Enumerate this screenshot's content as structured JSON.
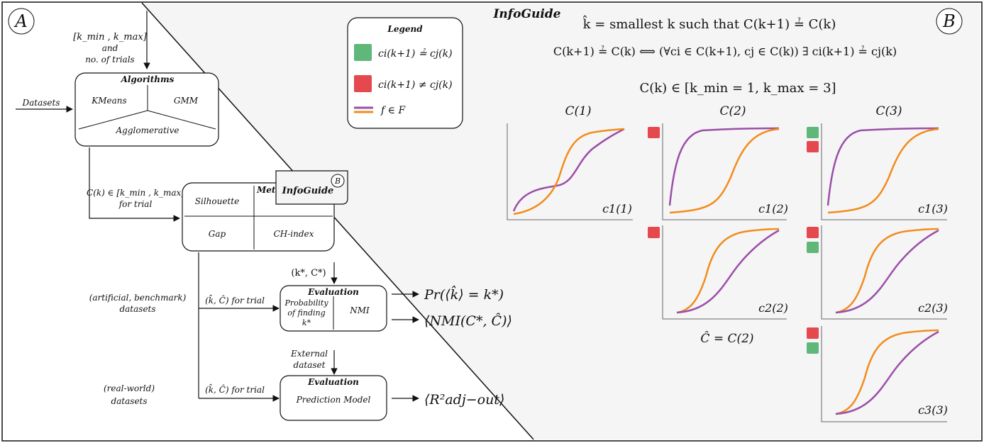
{
  "panel_a": {
    "label": "A",
    "inputs": {
      "k_range": "[k_min , k_max]",
      "and": "and",
      "trials": "no. of trials",
      "datasets": "Datasets"
    },
    "algorithms": {
      "title": "Algorithms",
      "kmeans": "KMeans",
      "gmm": "GMM",
      "agglomerative": "Agglomerative"
    },
    "clusterings_label": "C(k) ∈ [k_min , k_max]",
    "for_trial": "for trial",
    "metrics": {
      "title": "Metrics",
      "silhouette": "Silhouette",
      "gap": "Gap",
      "ch_index": "CH-index",
      "infoguide": "InfoGuide",
      "infoguide_ref": "B"
    },
    "ground_truth": "(k*, C*)",
    "estimate_label": "(k̂, Ĉ) for trial",
    "artificial": {
      "line1": "(artificial, benchmark)",
      "line2": "datasets"
    },
    "eval1": {
      "title": "Evaluation",
      "prob_line1": "Probability",
      "prob_line2": "of finding",
      "prob_line3": "k*",
      "nmi": "NMI",
      "out1": "Pr(⟨k̂⟩ = k*)",
      "out2": "⟨NMI(C*, Ĉ)⟩"
    },
    "external": {
      "line1": "External",
      "line2": "dataset"
    },
    "realworld": {
      "line1": "(real-world)",
      "line2": "datasets"
    },
    "eval2": {
      "title": "Evaluation",
      "model": "Prediction Model",
      "out": "⟨R²adj−out⟩"
    }
  },
  "panel_b": {
    "label": "B",
    "title": "InfoGuide",
    "eq1": "k̂ = smallest k such that C(k+1) ≟ C(k)",
    "eq2": "C(k+1) ≟ C(k)  ⟺  (∀ci ∈ C(k+1), cj ∈ C(k)) ∃ ci(k+1) ≟ cj(k)",
    "eq3": "C(k) ∈ [k_min = 1, k_max = 3]",
    "legend": {
      "title": "Legend",
      "equal": "ci(k+1) ≟ cj(k)",
      "notequal": "ci(k+1) ≠ cj(k)",
      "f": "f ∈ F"
    },
    "colors": {
      "green": "#5fb77a",
      "red": "#e5484d",
      "purple": "#9b4fa8",
      "orange": "#f28c1c",
      "panel_bg": "#f5f5f5"
    },
    "columns": [
      "C(1)",
      "C(2)",
      "C(3)"
    ],
    "plot_labels": [
      "c1(1)",
      "c1(2)",
      "c2(2)",
      "c1(3)",
      "c2(3)",
      "c3(3)"
    ],
    "selected": "Ĉ = C(2)"
  }
}
